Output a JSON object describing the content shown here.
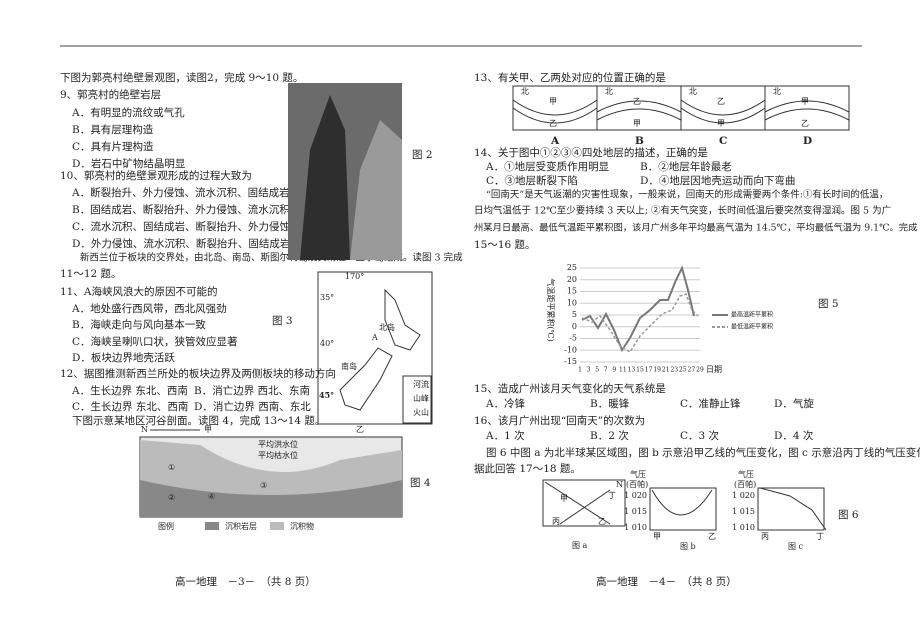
{
  "header": {},
  "left": {
    "intro1": "下图为郭亮村绝壁景观图，读图2，完成 9～10 题。",
    "q9": {
      "stem": "9、郭亮村的绝壁岩层",
      "options": [
        "A．有明显的流纹或气孔",
        "B．具有层理构造",
        "C．具有片理构造",
        "D．岩石中矿物结晶明显"
      ]
    },
    "q10": {
      "stem": "10、郭亮村的绝壁景观形成的过程大致为",
      "options": [
        "A．断裂抬升、外力侵蚀、流水沉积、固结成岩",
        "B．固结成岩、断裂抬升、外力侵蚀、流水沉积",
        "C．流水沉积、固结成岩、断裂抬升、外力侵蚀",
        "D．外力侵蚀、流水沉积、断裂抬升、固结成岩"
      ]
    },
    "intro2": [
      "新西兰位于板块的交界处，由北岛、南岛、斯图尔特岛及其附近一些小岛组成。读图 3 完成",
      "11～12 题。"
    ],
    "q11": {
      "stem": "11、A海峡风浪大的原因不可能的",
      "options": [
        "A．地处盛行西风带，西北风强劲",
        "B．海峡走向与风向基本一致",
        "C．海峡呈喇叭口状，狭管效应显著",
        "D．板块边界地壳活跃"
      ]
    },
    "q12": {
      "stem": "12、据图推测新西兰所处的板块边界及两侧板块的移动方向",
      "options": [
        "A．生长边界 东北、西南",
        "B．消亡边界 西北、东南",
        "C．生长边界 东北、西南",
        "D．消亡边界 西南、东北"
      ]
    },
    "intro3": "下图示意某地区河谷剖面。读图 4，完成 13～14 题。",
    "fig2": {
      "caption": "图 2"
    },
    "fig3": {
      "caption": "图 3",
      "lon": "170°",
      "lats": [
        "35°",
        "40°",
        "45°"
      ],
      "north": "北岛",
      "south": "南岛",
      "strait": "A",
      "legend": [
        "河流",
        "山峰",
        "火山"
      ]
    },
    "fig4": {
      "caption": "图 4",
      "north": "N",
      "a": "甲",
      "b": "乙",
      "flood": "平均洪水位",
      "low": "平均枯水位",
      "layers": [
        "①",
        "②",
        "③",
        "④"
      ],
      "legend_title": "图例",
      "legend": [
        "沉积岩层",
        "沉积物"
      ]
    },
    "footer": "高一地理　－3－　（共 8 页）"
  },
  "right": {
    "q13": {
      "stem": "13、有关甲、乙两处对应的位置正确的是",
      "options": [
        "A",
        "B",
        "C",
        "D"
      ],
      "north": "北",
      "a": "甲",
      "b": "乙"
    },
    "q14": {
      "stem": "14、关于图中①②③④四处地层的描述，正确的是",
      "options": [
        "A．①地层受变质作用明显",
        "B．②地层年龄最老",
        "C．③地层断裂下陷",
        "D．④地层因地壳运动而向下弯曲"
      ]
    },
    "intro4": [
      "“回南天”是天气返潮的灾害性现象，一般来说，回南天的形成需要两个条件:①有长时间的低温，",
      "日均气温低于 12℃至少要持续 3 天以上; ②有天气突变，长时间低温后要突然变得湿润。图 5 为广",
      "州某月日最高、最低气温距平累积图，该月广州多年平均最高气温为 14.5℃，平均最低气温为 9.1℃。完成",
      "15～16 题。"
    ],
    "fig5": {
      "caption": "图 5",
      "ylabel": "气温距平累积(℃)",
      "yticks": [
        "25",
        "20",
        "15",
        "10",
        "5",
        "0",
        "-5",
        "-10",
        "-15"
      ],
      "xticks": [
        "1",
        "3",
        "5",
        "7",
        "9",
        "11",
        "13",
        "15",
        "17",
        "19",
        "21",
        "23",
        "25",
        "27",
        "29"
      ],
      "xlabel": "日期",
      "legend": [
        "最高温距平累积",
        "最低温距平累积"
      ]
    },
    "q15": {
      "stem": "15、造成广州该月天气变化的天气系统是",
      "options": [
        "A．冷锋",
        "B．暖锋",
        "C．准静止锋",
        "D．气旋"
      ]
    },
    "q16": {
      "stem": "16、该月广州出现“回南天”的次数为",
      "options": [
        "A．1 次",
        "B．2 次",
        "C．3 次",
        "D．4 次"
      ]
    },
    "intro5": [
      "图 6 中图 a 为北半球某区域图，图 b 示意沿甲乙线的气压变化，图 c 示意沿丙丁线的气压变化。",
      "据此回答 17～18 题。"
    ],
    "fig6": {
      "caption": "图 6",
      "a": "甲",
      "b": "乙",
      "c": "丙",
      "d": "丁",
      "north": "N",
      "ylabel1": "气压",
      "ylabel2": "(百帕)",
      "yticks": [
        "1 020",
        "1 015",
        "1 010"
      ],
      "captions": [
        "图 a",
        "图 b",
        "图 c"
      ]
    },
    "footer": "高一地理　－4－　（共 8 页）"
  }
}
